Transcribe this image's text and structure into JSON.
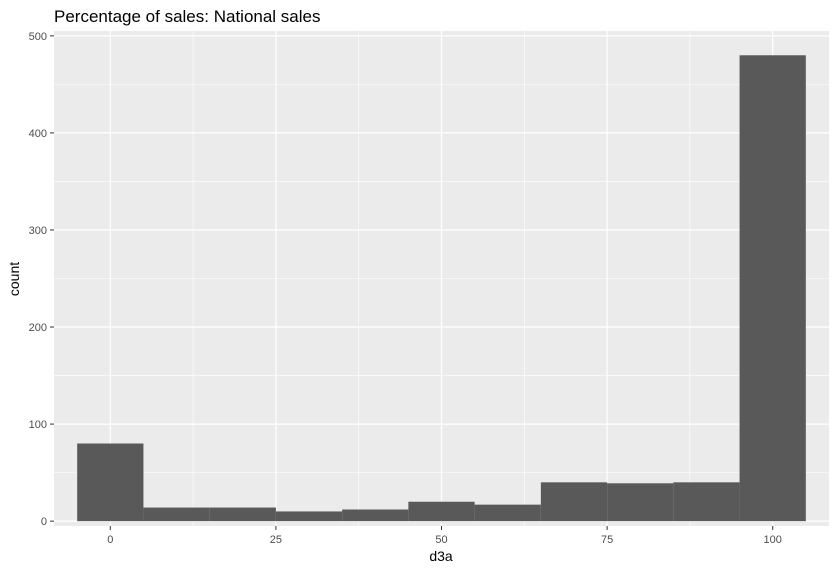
{
  "chart_data": {
    "type": "bar",
    "title": "Percentage of sales: National sales",
    "xlabel": "d3a",
    "ylabel": "count",
    "xlim": [
      -8.5,
      108.5
    ],
    "ylim": [
      -5,
      505
    ],
    "x_ticks": [
      0,
      25,
      50,
      75,
      100
    ],
    "x_tick_labels": [
      "0",
      "25",
      "50",
      "75",
      "100"
    ],
    "y_ticks": [
      0,
      100,
      200,
      300,
      400,
      500
    ],
    "y_tick_labels": [
      "0",
      "100",
      "200",
      "300",
      "400",
      "500"
    ],
    "bins": [
      {
        "x0": -5,
        "x1": 5,
        "count": 80
      },
      {
        "x0": 5,
        "x1": 15,
        "count": 14
      },
      {
        "x0": 15,
        "x1": 25,
        "count": 14
      },
      {
        "x0": 25,
        "x1": 35,
        "count": 10
      },
      {
        "x0": 35,
        "x1": 45,
        "count": 12
      },
      {
        "x0": 45,
        "x1": 55,
        "count": 20
      },
      {
        "x0": 55,
        "x1": 65,
        "count": 17
      },
      {
        "x0": 65,
        "x1": 75,
        "count": 40
      },
      {
        "x0": 75,
        "x1": 85,
        "count": 39
      },
      {
        "x0": 85,
        "x1": 95,
        "count": 40
      },
      {
        "x0": 95,
        "x1": 105,
        "count": 480
      }
    ],
    "grid": true,
    "colors": {
      "panel_background": "#ebebeb",
      "gridline": "#ffffff",
      "bar_fill": "#595959"
    }
  }
}
